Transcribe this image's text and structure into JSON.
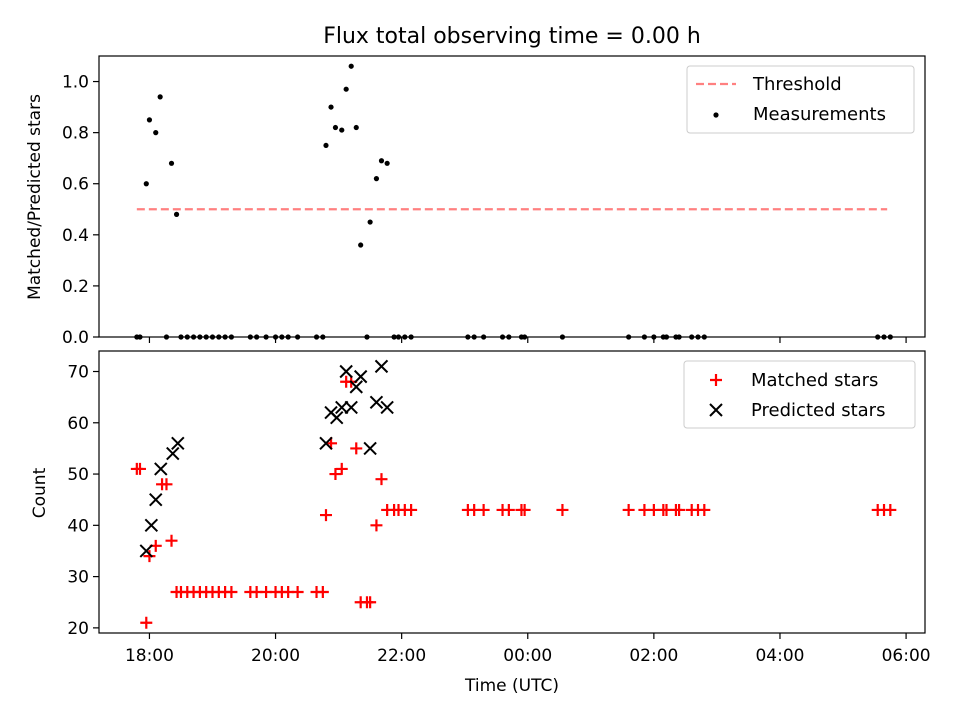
{
  "chart_data": [
    {
      "type": "scatter",
      "title": "Flux total observing time = 0.00 h",
      "xlabel": "",
      "ylabel": "Matched/Predicted stars",
      "x_unit": "hours since 18:00 UTC",
      "xlim": [
        -0.8,
        12.3
      ],
      "ylim": [
        0,
        1.1
      ],
      "yticks": [
        0.0,
        0.2,
        0.4,
        0.6,
        0.8,
        1.0
      ],
      "ytick_labels": [
        "0.0",
        "0.2",
        "0.4",
        "0.6",
        "0.8",
        "1.0"
      ],
      "legend": {
        "placement": "top-right",
        "entries": [
          "Threshold",
          "Measurements"
        ]
      },
      "threshold": {
        "name": "Threshold",
        "value": 0.5,
        "x_range": [
          -0.2,
          11.7
        ],
        "color": "#ff8080"
      },
      "series": [
        {
          "name": "Measurements",
          "color": "#000000",
          "points": [
            [
              -0.2,
              0
            ],
            [
              -0.15,
              0
            ],
            [
              -0.05,
              0.6
            ],
            [
              0.0,
              0.85
            ],
            [
              0.1,
              0.8
            ],
            [
              0.17,
              0.94
            ],
            [
              0.27,
              0
            ],
            [
              0.35,
              0.68
            ],
            [
              0.43,
              0.48
            ],
            [
              0.5,
              0
            ],
            [
              0.6,
              0
            ],
            [
              0.7,
              0
            ],
            [
              0.8,
              0
            ],
            [
              0.9,
              0
            ],
            [
              1.0,
              0
            ],
            [
              1.1,
              0
            ],
            [
              1.2,
              0
            ],
            [
              1.3,
              0
            ],
            [
              1.6,
              0
            ],
            [
              1.7,
              0
            ],
            [
              1.85,
              0
            ],
            [
              2.0,
              0
            ],
            [
              2.1,
              0
            ],
            [
              2.2,
              0
            ],
            [
              2.35,
              0
            ],
            [
              2.65,
              0
            ],
            [
              2.75,
              0
            ],
            [
              2.8,
              0.75
            ],
            [
              2.88,
              0.9
            ],
            [
              2.95,
              0.82
            ],
            [
              3.05,
              0.81
            ],
            [
              3.12,
              0.97
            ],
            [
              3.2,
              1.06
            ],
            [
              3.28,
              0.82
            ],
            [
              3.35,
              0.36
            ],
            [
              3.45,
              0
            ],
            [
              3.5,
              0.45
            ],
            [
              3.6,
              0.62
            ],
            [
              3.68,
              0.69
            ],
            [
              3.77,
              0.68
            ],
            [
              3.88,
              0
            ],
            [
              3.95,
              0
            ],
            [
              4.05,
              0
            ],
            [
              4.15,
              0
            ],
            [
              5.05,
              0
            ],
            [
              5.15,
              0
            ],
            [
              5.3,
              0
            ],
            [
              5.6,
              0
            ],
            [
              5.7,
              0
            ],
            [
              5.9,
              0
            ],
            [
              5.95,
              0
            ],
            [
              6.55,
              0
            ],
            [
              7.6,
              0
            ],
            [
              7.85,
              0
            ],
            [
              8.0,
              0
            ],
            [
              8.15,
              0
            ],
            [
              8.2,
              0
            ],
            [
              8.35,
              0
            ],
            [
              8.4,
              0
            ],
            [
              8.6,
              0
            ],
            [
              8.7,
              0
            ],
            [
              8.8,
              0
            ],
            [
              11.55,
              0
            ],
            [
              11.65,
              0
            ],
            [
              11.75,
              0
            ]
          ]
        }
      ]
    },
    {
      "type": "scatter",
      "title": "",
      "xlabel": "Time (UTC)",
      "ylabel": "Count",
      "x_unit": "hours since 18:00 UTC",
      "xlim": [
        -0.8,
        12.3
      ],
      "ylim": [
        19,
        74
      ],
      "xticks": [
        0,
        2,
        4,
        6,
        8,
        10,
        12
      ],
      "xtick_labels": [
        "18:00",
        "20:00",
        "22:00",
        "00:00",
        "02:00",
        "04:00",
        "06:00"
      ],
      "yticks": [
        20,
        30,
        40,
        50,
        60,
        70
      ],
      "ytick_labels": [
        "20",
        "30",
        "40",
        "50",
        "60",
        "70"
      ],
      "legend": {
        "placement": "top-right",
        "entries": [
          "Matched stars",
          "Predicted stars"
        ]
      },
      "series": [
        {
          "name": "Matched stars",
          "marker": "plus",
          "color": "#ff0000",
          "points": [
            [
              -0.2,
              51
            ],
            [
              -0.15,
              51
            ],
            [
              -0.05,
              21
            ],
            [
              0.0,
              34
            ],
            [
              0.1,
              36
            ],
            [
              0.2,
              48
            ],
            [
              0.27,
              48
            ],
            [
              0.35,
              37
            ],
            [
              0.43,
              27
            ],
            [
              0.5,
              27
            ],
            [
              0.6,
              27
            ],
            [
              0.7,
              27
            ],
            [
              0.8,
              27
            ],
            [
              0.9,
              27
            ],
            [
              1.0,
              27
            ],
            [
              1.1,
              27
            ],
            [
              1.2,
              27
            ],
            [
              1.3,
              27
            ],
            [
              1.6,
              27
            ],
            [
              1.7,
              27
            ],
            [
              1.85,
              27
            ],
            [
              2.0,
              27
            ],
            [
              2.1,
              27
            ],
            [
              2.2,
              27
            ],
            [
              2.35,
              27
            ],
            [
              2.65,
              27
            ],
            [
              2.75,
              27
            ],
            [
              2.8,
              42
            ],
            [
              2.88,
              56
            ],
            [
              2.95,
              50
            ],
            [
              3.05,
              51
            ],
            [
              3.12,
              68
            ],
            [
              3.2,
              68
            ],
            [
              3.28,
              55
            ],
            [
              3.35,
              25
            ],
            [
              3.45,
              25
            ],
            [
              3.5,
              25
            ],
            [
              3.6,
              40
            ],
            [
              3.68,
              49
            ],
            [
              3.77,
              43
            ],
            [
              3.88,
              43
            ],
            [
              3.95,
              43
            ],
            [
              4.05,
              43
            ],
            [
              4.15,
              43
            ],
            [
              5.05,
              43
            ],
            [
              5.15,
              43
            ],
            [
              5.3,
              43
            ],
            [
              5.6,
              43
            ],
            [
              5.7,
              43
            ],
            [
              5.9,
              43
            ],
            [
              5.95,
              43
            ],
            [
              6.55,
              43
            ],
            [
              7.6,
              43
            ],
            [
              7.85,
              43
            ],
            [
              8.0,
              43
            ],
            [
              8.15,
              43
            ],
            [
              8.2,
              43
            ],
            [
              8.35,
              43
            ],
            [
              8.4,
              43
            ],
            [
              8.6,
              43
            ],
            [
              8.7,
              43
            ],
            [
              8.8,
              43
            ],
            [
              11.55,
              43
            ],
            [
              11.65,
              43
            ],
            [
              11.75,
              43
            ]
          ]
        },
        {
          "name": "Predicted stars",
          "marker": "x",
          "color": "#000000",
          "points": [
            [
              -0.05,
              35
            ],
            [
              0.03,
              40
            ],
            [
              0.1,
              45
            ],
            [
              0.18,
              51
            ],
            [
              0.37,
              54
            ],
            [
              0.45,
              56
            ],
            [
              2.8,
              56
            ],
            [
              2.88,
              62
            ],
            [
              2.97,
              61
            ],
            [
              3.05,
              63
            ],
            [
              3.12,
              70
            ],
            [
              3.2,
              63
            ],
            [
              3.28,
              67
            ],
            [
              3.35,
              69
            ],
            [
              3.5,
              55
            ],
            [
              3.6,
              64
            ],
            [
              3.68,
              71
            ],
            [
              3.77,
              63
            ]
          ]
        }
      ]
    }
  ]
}
